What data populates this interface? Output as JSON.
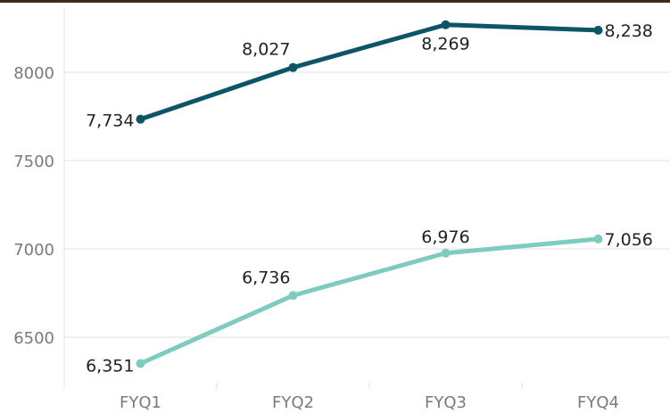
{
  "chart_data": {
    "type": "line",
    "categories": [
      "FYQ1",
      "FYQ2",
      "FYQ3",
      "FYQ4"
    ],
    "y_ticks": [
      "6500",
      "7000",
      "7500",
      "8000"
    ],
    "ylim": [
      6200,
      8380
    ],
    "grid": true,
    "series": [
      {
        "values": [
          7734,
          8027,
          8269,
          8238
        ],
        "labels": [
          "7,734",
          "8,027",
          "8,269",
          "8,238"
        ],
        "color": "#0b5566"
      },
      {
        "values": [
          6351,
          6736,
          6976,
          7056
        ],
        "labels": [
          "6,351",
          "6,736",
          "6,976",
          "7,056"
        ],
        "color": "#7ecbbf"
      }
    ]
  }
}
